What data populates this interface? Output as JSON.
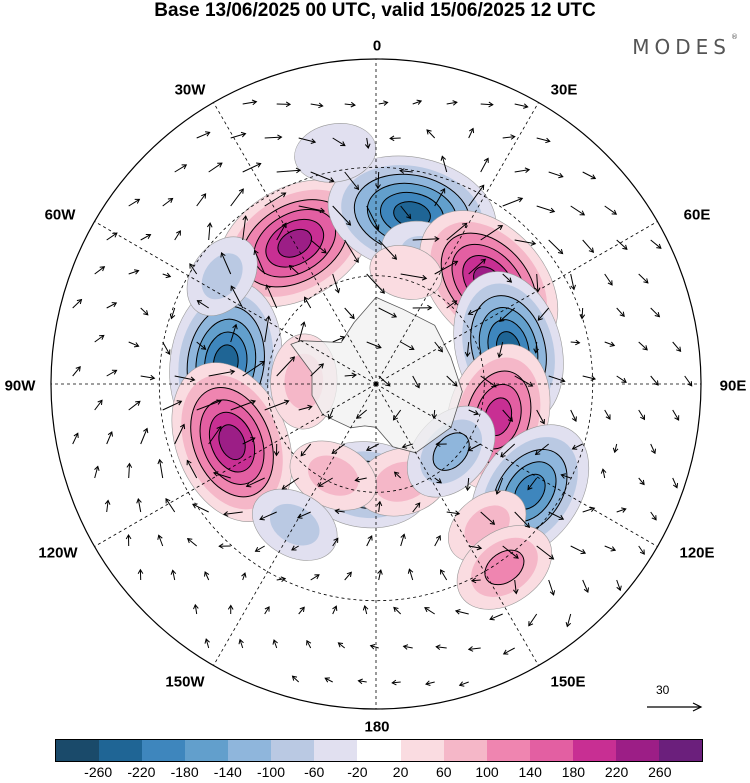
{
  "title": "Base 13/06/2025 00 UTC, valid 15/06/2025 12 UTC",
  "brand": "MODES",
  "brand_mark": "®",
  "longitude_labels": {
    "top": "0",
    "top_right": "30E",
    "right_upper": "60E",
    "right": "90E",
    "right_lower": "120E",
    "bottom_right": "150E",
    "bottom": "180",
    "bottom_left": "150W",
    "left_lower": "120W",
    "left": "90W",
    "left_upper": "60W",
    "top_left": "30W"
  },
  "reference_vector_label": "30",
  "colorbar": {
    "colors": [
      "#1a4a6a",
      "#1f6595",
      "#3e86bd",
      "#629fcc",
      "#8fb6dc",
      "#bac9e3",
      "#e1e0f0",
      "#ffffff",
      "#fadce1",
      "#f5b7c8",
      "#ef85b0",
      "#e35fa2",
      "#c82f93",
      "#9c1e86",
      "#6b1f7c"
    ],
    "ticks": [
      "-260",
      "-220",
      "-180",
      "-140",
      "-100",
      "-60",
      "-20",
      "20",
      "60",
      "100",
      "140",
      "180",
      "220",
      "260"
    ]
  },
  "anomaly_centers": [
    {
      "lon": -30,
      "lat": -45,
      "value": 240
    },
    {
      "lon": 12,
      "lat": -42,
      "value": -250
    },
    {
      "lon": 22,
      "lat": -52,
      "value": -80
    },
    {
      "lon": 48,
      "lat": -48,
      "value": 240
    },
    {
      "lon": 75,
      "lat": -52,
      "value": -220
    },
    {
      "lon": 105,
      "lat": -55,
      "value": 200
    },
    {
      "lon": 125,
      "lat": -38,
      "value": -200
    },
    {
      "lon": 142,
      "lat": -40,
      "value": 60
    },
    {
      "lon": 145,
      "lat": -28,
      "value": 100
    },
    {
      "lon": -82,
      "lat": -48,
      "value": -240
    },
    {
      "lon": -112,
      "lat": -47,
      "value": 240
    },
    {
      "lon": -55,
      "lat": -38,
      "value": -60
    },
    {
      "lon": -175,
      "lat": -62,
      "value": -150
    },
    {
      "lon": 165,
      "lat": -62,
      "value": 80
    },
    {
      "lon": -155,
      "lat": -62,
      "value": 70
    },
    {
      "lon": 132,
      "lat": -62,
      "value": -100
    },
    {
      "lon": -150,
      "lat": -45,
      "value": -70
    },
    {
      "lon": -88,
      "lat": -70,
      "value": 80
    },
    {
      "lon": 15,
      "lat": -58,
      "value": 30
    },
    {
      "lon": -10,
      "lat": -25,
      "value": -50
    }
  ]
}
